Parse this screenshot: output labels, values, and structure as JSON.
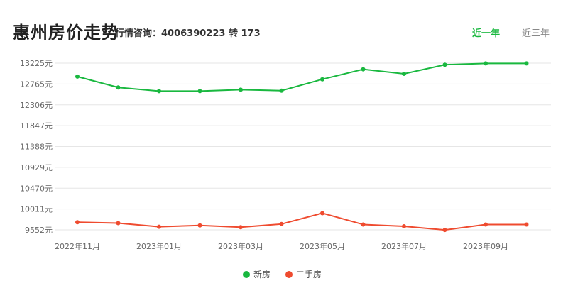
{
  "header": {
    "title": "惠州房价走势",
    "hotline": "行情咨询：4006390223 转 173",
    "tabs": [
      {
        "label": "近一年",
        "active": true
      },
      {
        "label": "近三年",
        "active": false
      }
    ]
  },
  "colors": {
    "new": "#19b83f",
    "second": "#ef4b2f",
    "grid": "#e6e6e6",
    "axis_text": "#666666",
    "tab_active": "#19b83f",
    "tab_inactive": "#888888"
  },
  "chart_data": {
    "type": "line",
    "x": [
      "2022-11",
      "2022-12",
      "2023-01",
      "2023-02",
      "2023-03",
      "2023-04",
      "2023-05",
      "2023-06",
      "2023-07",
      "2023-08",
      "2023-09",
      "2023-10"
    ],
    "x_tick_labels": [
      "2022年11月",
      "2023年01月",
      "2023年03月",
      "2023年05月",
      "2023年07月",
      "2023年09月"
    ],
    "y_ticks": [
      9552,
      10011,
      10470,
      10929,
      11388,
      11847,
      12306,
      12765,
      13225
    ],
    "y_unit": "元",
    "ylim": [
      9552,
      13225
    ],
    "grid": true,
    "legend_position": "bottom",
    "series": [
      {
        "name": "新房",
        "color": "#19b83f",
        "values": [
          12930,
          12690,
          12610,
          12610,
          12640,
          12620,
          12870,
          13090,
          12990,
          13190,
          13220,
          13220
        ]
      },
      {
        "name": "二手房",
        "color": "#ef4b2f",
        "values": [
          9720,
          9700,
          9620,
          9650,
          9610,
          9680,
          9920,
          9670,
          9630,
          9550,
          9670,
          9670
        ]
      }
    ]
  }
}
